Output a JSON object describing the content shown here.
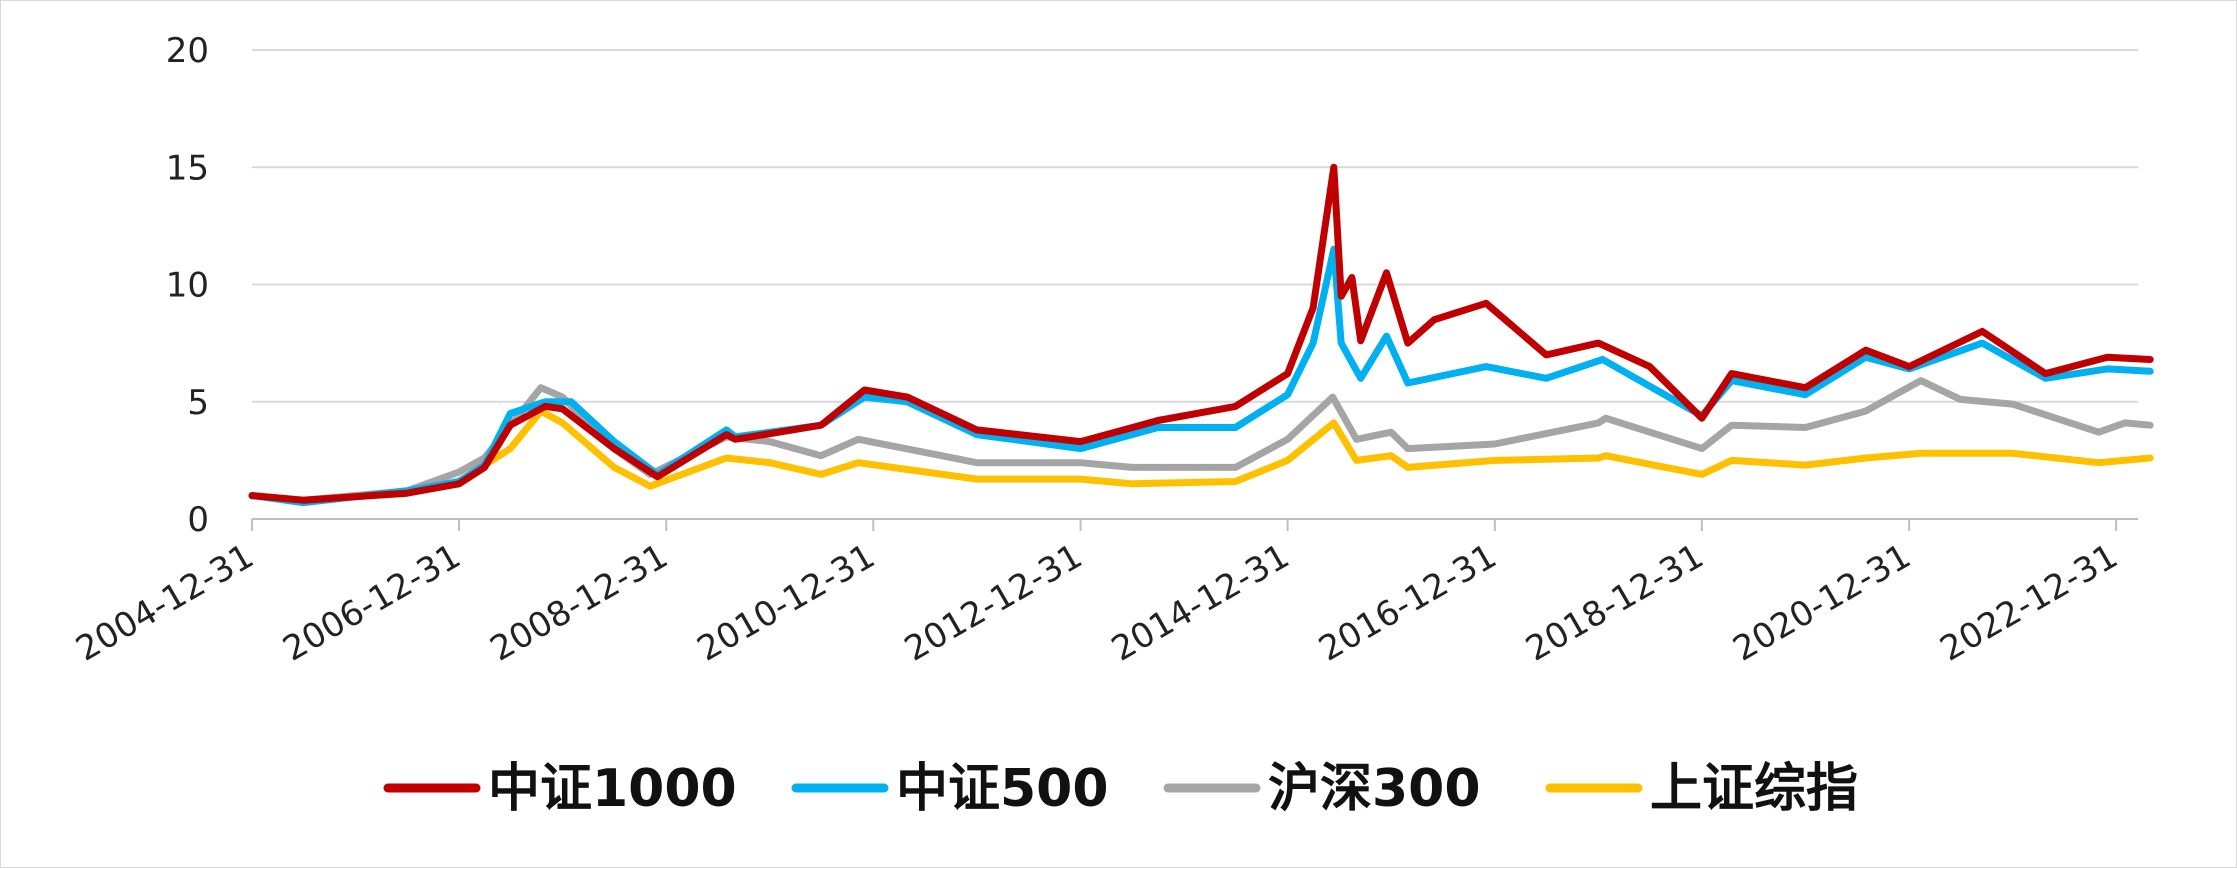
{
  "chart_data": {
    "type": "line",
    "title": "",
    "xlabel": "",
    "ylabel": "",
    "ylim": [
      0,
      20
    ],
    "yticks": [
      "0",
      "5",
      "10",
      "15",
      "20"
    ],
    "xlim": [
      "2004-12-31",
      "2023-04-30"
    ],
    "xticks": [
      "2004-12-31",
      "2006-12-31",
      "2008-12-31",
      "2010-12-31",
      "2012-12-31",
      "2014-12-31",
      "2016-12-31",
      "2018-12-31",
      "2020-12-31",
      "2022-12-31"
    ],
    "grid": "horizontal",
    "legend_position": "bottom",
    "series": [
      {
        "name": "中证1000",
        "color": "#C00000",
        "points": [
          [
            "2004-12-31",
            1.0
          ],
          [
            "2005-06-30",
            0.8
          ],
          [
            "2006-06-30",
            1.1
          ],
          [
            "2006-12-31",
            1.5
          ],
          [
            "2007-03-31",
            2.2
          ],
          [
            "2007-06-30",
            4.0
          ],
          [
            "2007-10-31",
            4.8
          ],
          [
            "2007-12-31",
            4.7
          ],
          [
            "2008-06-30",
            3.0
          ],
          [
            "2008-11-30",
            1.8
          ],
          [
            "2009-07-31",
            3.6
          ],
          [
            "2009-08-31",
            3.4
          ],
          [
            "2010-06-30",
            4.0
          ],
          [
            "2010-11-30",
            5.5
          ],
          [
            "2011-04-30",
            5.2
          ],
          [
            "2011-12-31",
            3.8
          ],
          [
            "2012-12-31",
            3.3
          ],
          [
            "2013-09-30",
            4.2
          ],
          [
            "2014-06-30",
            4.8
          ],
          [
            "2014-12-31",
            6.2
          ],
          [
            "2015-03-31",
            9.0
          ],
          [
            "2015-06-12",
            15.0
          ],
          [
            "2015-07-08",
            9.5
          ],
          [
            "2015-08-15",
            10.3
          ],
          [
            "2015-09-15",
            7.6
          ],
          [
            "2015-12-15",
            10.5
          ],
          [
            "2016-02-28",
            7.5
          ],
          [
            "2016-05-31",
            8.5
          ],
          [
            "2016-11-30",
            9.2
          ],
          [
            "2017-06-30",
            7.0
          ],
          [
            "2017-12-31",
            7.5
          ],
          [
            "2018-06-30",
            6.5
          ],
          [
            "2018-12-31",
            4.3
          ],
          [
            "2019-04-15",
            6.2
          ],
          [
            "2019-12-31",
            5.6
          ],
          [
            "2020-07-31",
            7.2
          ],
          [
            "2020-12-31",
            6.5
          ],
          [
            "2021-09-15",
            8.0
          ],
          [
            "2022-04-26",
            6.2
          ],
          [
            "2022-11-30",
            6.9
          ],
          [
            "2023-04-30",
            6.8
          ]
        ]
      },
      {
        "name": "中证500",
        "color": "#00B0F0",
        "points": [
          [
            "2004-12-31",
            1.0
          ],
          [
            "2005-06-30",
            0.7
          ],
          [
            "2006-06-30",
            1.2
          ],
          [
            "2006-12-31",
            1.6
          ],
          [
            "2007-03-31",
            2.3
          ],
          [
            "2007-06-30",
            4.5
          ],
          [
            "2007-10-31",
            5.0
          ],
          [
            "2008-01-31",
            5.0
          ],
          [
            "2008-06-30",
            3.3
          ],
          [
            "2008-11-30",
            1.9
          ],
          [
            "2009-07-31",
            3.8
          ],
          [
            "2009-08-31",
            3.5
          ],
          [
            "2010-06-30",
            4.0
          ],
          [
            "2010-11-30",
            5.2
          ],
          [
            "2011-04-30",
            5.0
          ],
          [
            "2011-12-31",
            3.6
          ],
          [
            "2012-12-31",
            3.0
          ],
          [
            "2013-09-30",
            3.9
          ],
          [
            "2014-06-30",
            3.9
          ],
          [
            "2014-12-31",
            5.3
          ],
          [
            "2015-03-31",
            7.5
          ],
          [
            "2015-06-12",
            11.5
          ],
          [
            "2015-07-08",
            7.5
          ],
          [
            "2015-09-15",
            6.0
          ],
          [
            "2015-12-15",
            7.8
          ],
          [
            "2016-02-28",
            5.8
          ],
          [
            "2016-11-30",
            6.5
          ],
          [
            "2017-06-30",
            6.0
          ],
          [
            "2018-01-15",
            6.8
          ],
          [
            "2018-12-31",
            4.4
          ],
          [
            "2019-04-15",
            5.9
          ],
          [
            "2019-12-31",
            5.3
          ],
          [
            "2020-07-31",
            6.9
          ],
          [
            "2020-12-31",
            6.4
          ],
          [
            "2021-09-15",
            7.5
          ],
          [
            "2022-04-26",
            6.0
          ],
          [
            "2022-11-30",
            6.4
          ],
          [
            "2023-04-30",
            6.3
          ]
        ]
      },
      {
        "name": "沪深300",
        "color": "#A5A5A5",
        "points": [
          [
            "2004-12-31",
            1.0
          ],
          [
            "2005-06-30",
            0.8
          ],
          [
            "2006-06-30",
            1.2
          ],
          [
            "2006-12-31",
            2.0
          ],
          [
            "2007-03-31",
            2.6
          ],
          [
            "2007-10-16",
            5.6
          ],
          [
            "2007-12-31",
            5.2
          ],
          [
            "2008-06-30",
            3.0
          ],
          [
            "2008-11-04",
            1.9
          ],
          [
            "2009-07-31",
            3.5
          ],
          [
            "2009-12-31",
            3.3
          ],
          [
            "2010-06-30",
            2.7
          ],
          [
            "2010-11-08",
            3.4
          ],
          [
            "2011-12-31",
            2.4
          ],
          [
            "2012-12-31",
            2.4
          ],
          [
            "2013-06-30",
            2.2
          ],
          [
            "2014-06-30",
            2.2
          ],
          [
            "2014-12-31",
            3.4
          ],
          [
            "2015-06-08",
            5.2
          ],
          [
            "2015-08-31",
            3.4
          ],
          [
            "2015-12-31",
            3.7
          ],
          [
            "2016-02-28",
            3.0
          ],
          [
            "2016-12-31",
            3.2
          ],
          [
            "2017-12-31",
            4.1
          ],
          [
            "2018-01-26",
            4.3
          ],
          [
            "2018-12-31",
            3.0
          ],
          [
            "2019-04-15",
            4.0
          ],
          [
            "2019-12-31",
            3.9
          ],
          [
            "2020-07-31",
            4.6
          ],
          [
            "2021-02-10",
            5.9
          ],
          [
            "2021-06-30",
            5.1
          ],
          [
            "2021-12-31",
            4.9
          ],
          [
            "2022-10-31",
            3.7
          ],
          [
            "2023-01-31",
            4.1
          ],
          [
            "2023-04-30",
            4.0
          ]
        ]
      },
      {
        "name": "上证综指",
        "color": "#FFC000",
        "points": [
          [
            "2004-12-31",
            1.0
          ],
          [
            "2005-06-30",
            0.8
          ],
          [
            "2006-06-30",
            1.1
          ],
          [
            "2006-12-31",
            1.6
          ],
          [
            "2007-06-30",
            3.0
          ],
          [
            "2007-10-16",
            4.6
          ],
          [
            "2007-12-31",
            4.1
          ],
          [
            "2008-06-30",
            2.2
          ],
          [
            "2008-11-04",
            1.4
          ],
          [
            "2009-07-31",
            2.6
          ],
          [
            "2009-12-31",
            2.4
          ],
          [
            "2010-06-30",
            1.9
          ],
          [
            "2010-11-08",
            2.4
          ],
          [
            "2011-12-31",
            1.7
          ],
          [
            "2012-12-31",
            1.7
          ],
          [
            "2013-06-30",
            1.5
          ],
          [
            "2014-06-30",
            1.6
          ],
          [
            "2014-12-31",
            2.5
          ],
          [
            "2015-06-12",
            4.1
          ],
          [
            "2015-08-31",
            2.5
          ],
          [
            "2015-12-31",
            2.7
          ],
          [
            "2016-02-28",
            2.2
          ],
          [
            "2016-12-31",
            2.5
          ],
          [
            "2017-12-31",
            2.6
          ],
          [
            "2018-01-26",
            2.7
          ],
          [
            "2018-12-31",
            1.9
          ],
          [
            "2019-04-15",
            2.5
          ],
          [
            "2019-12-31",
            2.3
          ],
          [
            "2020-07-31",
            2.6
          ],
          [
            "2021-02-10",
            2.8
          ],
          [
            "2021-12-31",
            2.8
          ],
          [
            "2022-10-31",
            2.4
          ],
          [
            "2023-04-30",
            2.6
          ]
        ]
      }
    ]
  }
}
